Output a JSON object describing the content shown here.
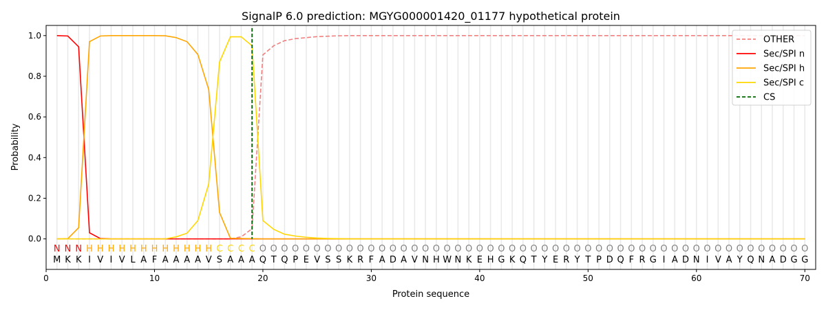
{
  "chart_data": {
    "type": "line",
    "title": "SignalP 6.0 prediction: MGYG000001420_01177 hypothetical protein",
    "xlabel": "Protein sequence",
    "ylabel": "Probability",
    "xlim": [
      0,
      71
    ],
    "ylim": [
      -0.15,
      1.05
    ],
    "xticks": [
      0,
      10,
      20,
      30,
      40,
      50,
      60,
      70
    ],
    "yticks": [
      "0.0",
      "0.2",
      "0.4",
      "0.6",
      "0.8",
      "1.0"
    ],
    "grid": "vertical per residue",
    "legend_position": "top-right",
    "sequence": [
      "M",
      "K",
      "K",
      "I",
      "V",
      "I",
      "V",
      "L",
      "A",
      "F",
      "A",
      "A",
      "A",
      "A",
      "V",
      "S",
      "A",
      "A",
      "A",
      "Q",
      "T",
      "Q",
      "P",
      "E",
      "V",
      "S",
      "S",
      "K",
      "R",
      "F",
      "A",
      "D",
      "A",
      "V",
      "N",
      "H",
      "W",
      "N",
      "K",
      "E",
      "H",
      "G",
      "K",
      "Q",
      "T",
      "Y",
      "E",
      "R",
      "Y",
      "T",
      "P",
      "D",
      "Q",
      "F",
      "R",
      "G",
      "I",
      "A",
      "D",
      "N",
      "I",
      "V",
      "A",
      "Y",
      "Q",
      "N",
      "A",
      "D",
      "G",
      "G"
    ],
    "labels": [
      "N",
      "N",
      "N",
      "H",
      "H",
      "H",
      "H",
      "H",
      "H",
      "H",
      "H",
      "H",
      "H",
      "H",
      "H",
      "C",
      "C",
      "C",
      "C",
      "O",
      "O",
      "O",
      "O",
      "O",
      "O",
      "O",
      "O",
      "O",
      "O",
      "O",
      "O",
      "O",
      "O",
      "O",
      "O",
      "O",
      "O",
      "O",
      "O",
      "O",
      "O",
      "O",
      "O",
      "O",
      "O",
      "O",
      "O",
      "O",
      "O",
      "O",
      "O",
      "O",
      "O",
      "O",
      "O",
      "O",
      "O",
      "O",
      "O",
      "O",
      "O",
      "O",
      "O",
      "O",
      "O",
      "O",
      "O",
      "O",
      "O",
      "O"
    ],
    "label_colors": {
      "N": "#ff0000",
      "H": "#ffa500",
      "C": "#ffd700",
      "O": "#808080"
    },
    "cs_position": 19,
    "series": [
      {
        "name": "OTHER",
        "color": "#f08080",
        "dash": true,
        "values": [
          0,
          0,
          0,
          0,
          0,
          0,
          0,
          0,
          0,
          0,
          0,
          0,
          0,
          0,
          0,
          0,
          0,
          0.01,
          0.05,
          0.905,
          0.95,
          0.975,
          0.985,
          0.99,
          0.995,
          0.997,
          0.999,
          1,
          1,
          1,
          1,
          1,
          1,
          1,
          1,
          1,
          1,
          1,
          1,
          1,
          1,
          1,
          1,
          1,
          1,
          1,
          1,
          1,
          1,
          1,
          1,
          1,
          1,
          1,
          1,
          1,
          1,
          1,
          1,
          1,
          1,
          1,
          1,
          1,
          1,
          1,
          1,
          1,
          1,
          1
        ]
      },
      {
        "name": "Sec/SPI n",
        "color": "#ff0000",
        "values": [
          1,
          0.998,
          0.945,
          0.03,
          0.002,
          0,
          0,
          0,
          0,
          0,
          0,
          0,
          0,
          0,
          0,
          0,
          0,
          0,
          0,
          0,
          0,
          0,
          0,
          0,
          0,
          0,
          0,
          0,
          0,
          0,
          0,
          0,
          0,
          0,
          0,
          0,
          0,
          0,
          0,
          0,
          0,
          0,
          0,
          0,
          0,
          0,
          0,
          0,
          0,
          0,
          0,
          0,
          0,
          0,
          0,
          0,
          0,
          0,
          0,
          0,
          0,
          0,
          0,
          0,
          0,
          0,
          0,
          0,
          0,
          0
        ]
      },
      {
        "name": "Sec/SPI h",
        "color": "#ffa500",
        "values": [
          0,
          0.001,
          0.055,
          0.97,
          0.998,
          1,
          1,
          1,
          1,
          1,
          0.999,
          0.99,
          0.97,
          0.907,
          0.735,
          0.13,
          0.003,
          0.002,
          0.001,
          0,
          0,
          0,
          0,
          0,
          0,
          0,
          0,
          0,
          0,
          0,
          0,
          0,
          0,
          0,
          0,
          0,
          0,
          0,
          0,
          0,
          0,
          0,
          0,
          0,
          0,
          0,
          0,
          0,
          0,
          0,
          0,
          0,
          0,
          0,
          0,
          0,
          0,
          0,
          0,
          0,
          0,
          0,
          0,
          0,
          0,
          0,
          0,
          0,
          0,
          0
        ]
      },
      {
        "name": "Sec/SPI c",
        "color": "#ffd700",
        "values": [
          0,
          0,
          0,
          0,
          0,
          0,
          0,
          0,
          0,
          0,
          0,
          0.01,
          0.028,
          0.09,
          0.27,
          0.87,
          0.994,
          0.994,
          0.95,
          0.09,
          0.047,
          0.023,
          0.014,
          0.008,
          0.004,
          0.002,
          0.001,
          0,
          0,
          0,
          0,
          0,
          0,
          0,
          0,
          0,
          0,
          0,
          0,
          0,
          0,
          0,
          0,
          0,
          0,
          0,
          0,
          0,
          0,
          0,
          0,
          0,
          0,
          0,
          0,
          0,
          0,
          0,
          0,
          0,
          0,
          0,
          0,
          0,
          0,
          0,
          0,
          0,
          0,
          0
        ]
      }
    ],
    "cs_legend": {
      "name": "CS",
      "color": "#006400"
    }
  }
}
